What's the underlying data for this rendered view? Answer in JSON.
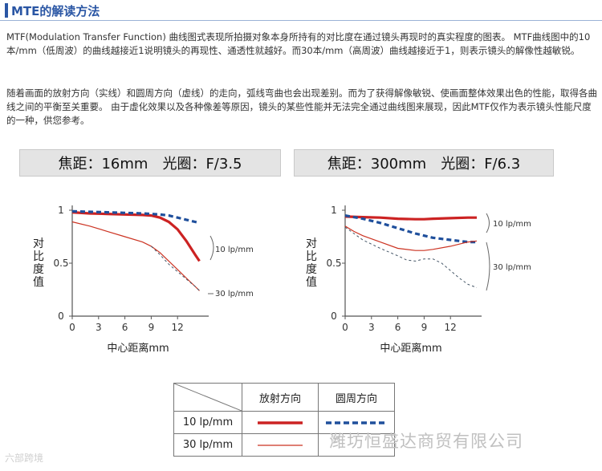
{
  "header": {
    "title": "MTE的解读方法"
  },
  "paragraphs": [
    "MTF(Modulation Transfer Function) 曲线图式表现所拍摄对象本身所持有的对比度在通过镜头再现时的真实程度的图表。 MTF曲线图中的10本/mm（低周波）的曲线越接近1说明镜头的再现性、通透性就越好。而30本/mm（高周波）曲线越接近于1，则表示镜头的解像性越敏锐。",
    "随着画面的放射方向（实线）和圆周方向（虚线）的走向，弧线弯曲也会出现差别。而为了获得解像敏锐、使画面整体效果出色的性能，取得各曲线之间的平衡至关重要。 由于虚化效果以及各种像差等原因，镜头的某些性能并无法完全通过曲线图来展现，因此MTF仅作为表示镜头性能尺度的一种，供您参考。"
  ],
  "colors": {
    "solid": "#cc2222",
    "dashed": "#1f4f9c",
    "thin": "#cc3322",
    "thin_dashed": "#445566",
    "axis": "#555555"
  },
  "chart_data": [
    {
      "type": "line",
      "title": "焦距：16mm　光圈：F/3.5",
      "xlabel": "中心距离mm",
      "ylabel": "对比度值",
      "xlim": [
        0,
        15
      ],
      "ylim": [
        0,
        1
      ],
      "xticks": [
        "0",
        "3",
        "6",
        "9",
        "12"
      ],
      "yticks": [
        "1",
        "0.5",
        "0"
      ],
      "annotations": [
        "10 lp/mm",
        "30 lp/mm"
      ],
      "series": [
        {
          "name": "10 lp/mm 放射方向",
          "style": "thick-solid",
          "x": [
            0,
            2,
            4,
            6,
            8,
            9,
            10,
            11,
            12,
            13,
            14,
            14.5
          ],
          "y": [
            0.98,
            0.97,
            0.965,
            0.96,
            0.955,
            0.95,
            0.93,
            0.89,
            0.82,
            0.71,
            0.58,
            0.52
          ]
        },
        {
          "name": "10 lp/mm 圆周方向",
          "style": "thick-dashed",
          "x": [
            0,
            2,
            4,
            6,
            8,
            9,
            10,
            11,
            12,
            13,
            14,
            14.5
          ],
          "y": [
            0.99,
            0.985,
            0.98,
            0.975,
            0.97,
            0.965,
            0.96,
            0.95,
            0.93,
            0.91,
            0.89,
            0.88
          ]
        },
        {
          "name": "30 lp/mm 放射方向",
          "style": "thin-solid",
          "x": [
            0,
            2,
            4,
            6,
            8,
            9,
            10,
            11,
            12,
            13,
            14,
            14.5
          ],
          "y": [
            0.89,
            0.85,
            0.8,
            0.75,
            0.7,
            0.66,
            0.6,
            0.52,
            0.44,
            0.36,
            0.28,
            0.24
          ]
        },
        {
          "name": "30 lp/mm 圆周方向",
          "style": "thin-dashed",
          "x": [
            9,
            10,
            11,
            12,
            13,
            14,
            14.5
          ],
          "y": [
            0.66,
            0.58,
            0.49,
            0.42,
            0.35,
            0.28,
            0.24
          ]
        }
      ]
    },
    {
      "type": "line",
      "title": "焦距：300mm　光圈：F/6.3",
      "xlabel": "中心距离mm",
      "ylabel": "对比度值",
      "xlim": [
        0,
        15
      ],
      "ylim": [
        0,
        1
      ],
      "xticks": [
        "0",
        "3",
        "6",
        "9",
        "12"
      ],
      "yticks": [
        "1",
        "0.5",
        "0"
      ],
      "annotations": [
        "10 lp/mm",
        "30 lp/mm"
      ],
      "series": [
        {
          "name": "10 lp/mm 放射方向",
          "style": "thick-solid",
          "x": [
            0,
            2,
            4,
            6,
            8,
            9,
            10,
            12,
            14,
            15
          ],
          "y": [
            0.94,
            0.935,
            0.93,
            0.92,
            0.915,
            0.915,
            0.92,
            0.925,
            0.93,
            0.93
          ]
        },
        {
          "name": "10 lp/mm 圆周方向",
          "style": "thick-dashed",
          "x": [
            0,
            2,
            4,
            6,
            8,
            9,
            10,
            12,
            14,
            15
          ],
          "y": [
            0.95,
            0.92,
            0.88,
            0.83,
            0.78,
            0.76,
            0.74,
            0.72,
            0.7,
            0.7
          ]
        },
        {
          "name": "30 lp/mm 放射方向",
          "style": "thin-solid",
          "x": [
            0,
            1,
            2,
            4,
            6,
            8,
            9,
            10,
            12,
            14,
            15
          ],
          "y": [
            0.85,
            0.8,
            0.76,
            0.7,
            0.64,
            0.62,
            0.62,
            0.63,
            0.66,
            0.7,
            0.71
          ]
        },
        {
          "name": "30 lp/mm 圆周方向",
          "style": "thin-dashed",
          "x": [
            0,
            1,
            2,
            4,
            6,
            7,
            8,
            9,
            10,
            11,
            12,
            13,
            14,
            15
          ],
          "y": [
            0.84,
            0.78,
            0.72,
            0.64,
            0.57,
            0.53,
            0.52,
            0.54,
            0.54,
            0.5,
            0.43,
            0.36,
            0.3,
            0.27
          ]
        }
      ]
    }
  ],
  "legend": {
    "headers": [
      "放射方向",
      "圆周方向"
    ],
    "rows": [
      "10 lp/mm",
      "30 lp/mm"
    ]
  },
  "watermark": "潍坊恒盛达商贸有限公司",
  "logo_text": "六部跨境"
}
